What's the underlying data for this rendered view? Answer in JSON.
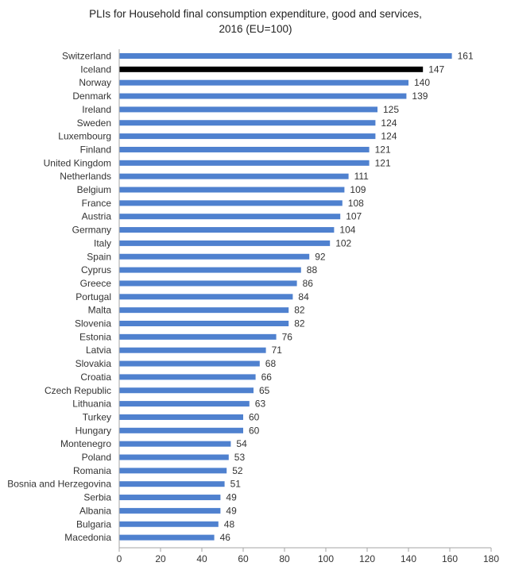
{
  "chart_data": {
    "type": "bar",
    "orientation": "horizontal",
    "title_line1": "PLIs for Household final consumption expenditure, good and services,",
    "title_line2": "2016  (EU=100)",
    "xlabel": "",
    "ylabel": "",
    "xlim": [
      0,
      180
    ],
    "x_ticks": [
      0,
      20,
      40,
      60,
      80,
      100,
      120,
      140,
      160,
      180
    ],
    "grid": false,
    "legend": "none",
    "colors": {
      "default": "#4F81CF",
      "highlight": "#000000"
    },
    "highlight_category": "Iceland",
    "categories": [
      "Switzerland",
      "Iceland",
      "Norway",
      "Denmark",
      "Ireland",
      "Sweden",
      "Luxembourg",
      "Finland",
      "United Kingdom",
      "Netherlands",
      "Belgium",
      "France",
      "Austria",
      "Germany",
      "Italy",
      "Spain",
      "Cyprus",
      "Greece",
      "Portugal",
      "Malta",
      "Slovenia",
      "Estonia",
      "Latvia",
      "Slovakia",
      "Croatia",
      "Czech Republic",
      "Lithuania",
      "Turkey",
      "Hungary",
      "Montenegro",
      "Poland",
      "Romania",
      "Bosnia and Herzegovina",
      "Serbia",
      "Albania",
      "Bulgaria",
      "Macedonia"
    ],
    "values": [
      161,
      147,
      140,
      139,
      125,
      124,
      124,
      121,
      121,
      111,
      109,
      108,
      107,
      104,
      102,
      92,
      88,
      86,
      84,
      82,
      82,
      76,
      71,
      68,
      66,
      65,
      63,
      60,
      60,
      54,
      53,
      52,
      51,
      49,
      49,
      48,
      46
    ]
  }
}
